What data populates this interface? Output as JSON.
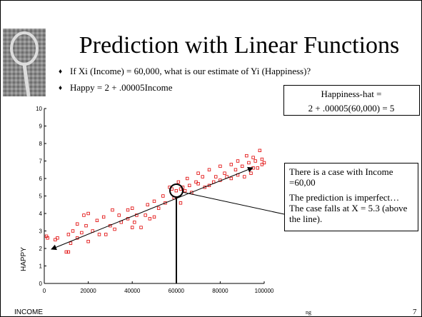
{
  "chart_data": {
    "type": "scatter",
    "title": "Prediction with Linear Functions",
    "bullets": [
      "If Xi (Income) = 60,000, what is our estimate of Yi (Happiness)?",
      "Happy = 2 + .00005Income"
    ],
    "formula_box": [
      "Happiness-hat =",
      "2 + .00005(60,000) = 5"
    ],
    "callout": [
      "There is a case with Income =60,00",
      "The prediction is imperfect… The case falls at X = 5.3 (above the line)."
    ],
    "x_label": "INCOME",
    "y_label": "HAPPY",
    "footer": [
      "ng",
      "7"
    ],
    "color": "#e00000",
    "x": [
      1000,
      1500,
      5000,
      6000,
      10000,
      11000,
      11000,
      12000,
      13000,
      15000,
      15000,
      17000,
      18000,
      19000,
      20000,
      20000,
      22000,
      24000,
      25000,
      27000,
      28000,
      30000,
      31000,
      32000,
      34000,
      35000,
      38000,
      38000,
      40000,
      40000,
      41000,
      42000,
      44000,
      46000,
      47000,
      48000,
      50000,
      50000,
      52000,
      54000,
      55000,
      57000,
      58000,
      59000,
      60000,
      61000,
      62000,
      62000,
      63000,
      64000,
      65000,
      66000,
      67000,
      69000,
      70000,
      70000,
      72000,
      73000,
      75000,
      75000,
      77000,
      78000,
      80000,
      80000,
      82000,
      83000,
      85000,
      85000,
      87000,
      88000,
      88000,
      90000,
      91000,
      92000,
      93000,
      94000,
      95000,
      95000,
      96000,
      97000,
      98000,
      99000,
      99000,
      100000
    ],
    "values": [
      2.7,
      2.6,
      2.5,
      2.6,
      1.8,
      1.8,
      2.8,
      2.3,
      3.0,
      3.4,
      2.6,
      2.9,
      3.9,
      3.3,
      4.0,
      2.4,
      3.0,
      3.6,
      2.8,
      3.8,
      2.8,
      3.3,
      4.2,
      3.1,
      3.9,
      3.5,
      3.7,
      4.2,
      4.3,
      3.2,
      3.5,
      3.9,
      3.2,
      3.9,
      4.5,
      3.7,
      4.7,
      3.8,
      4.3,
      5.0,
      4.6,
      5.5,
      5.4,
      4.9,
      5.3,
      5.8,
      5.4,
      4.6,
      5.5,
      5.3,
      6.0,
      5.6,
      5.2,
      5.8,
      6.3,
      5.7,
      6.1,
      5.5,
      6.5,
      5.6,
      5.8,
      6.1,
      6.7,
      5.9,
      6.3,
      6.1,
      6.8,
      6.0,
      6.5,
      7.0,
      6.2,
      6.7,
      6.1,
      7.3,
      6.9,
      6.3,
      7.2,
      6.6,
      7.0,
      6.6,
      7.6,
      7.1,
      6.8,
      6.9
    ],
    "xlim": [
      0,
      100000
    ],
    "ylim": [
      0,
      10
    ],
    "xticks": [
      0,
      20000,
      40000,
      60000,
      80000,
      100000
    ],
    "yticks": [
      0,
      1,
      2,
      3,
      4,
      5,
      6,
      7,
      8,
      9,
      10
    ],
    "grid": false
  }
}
